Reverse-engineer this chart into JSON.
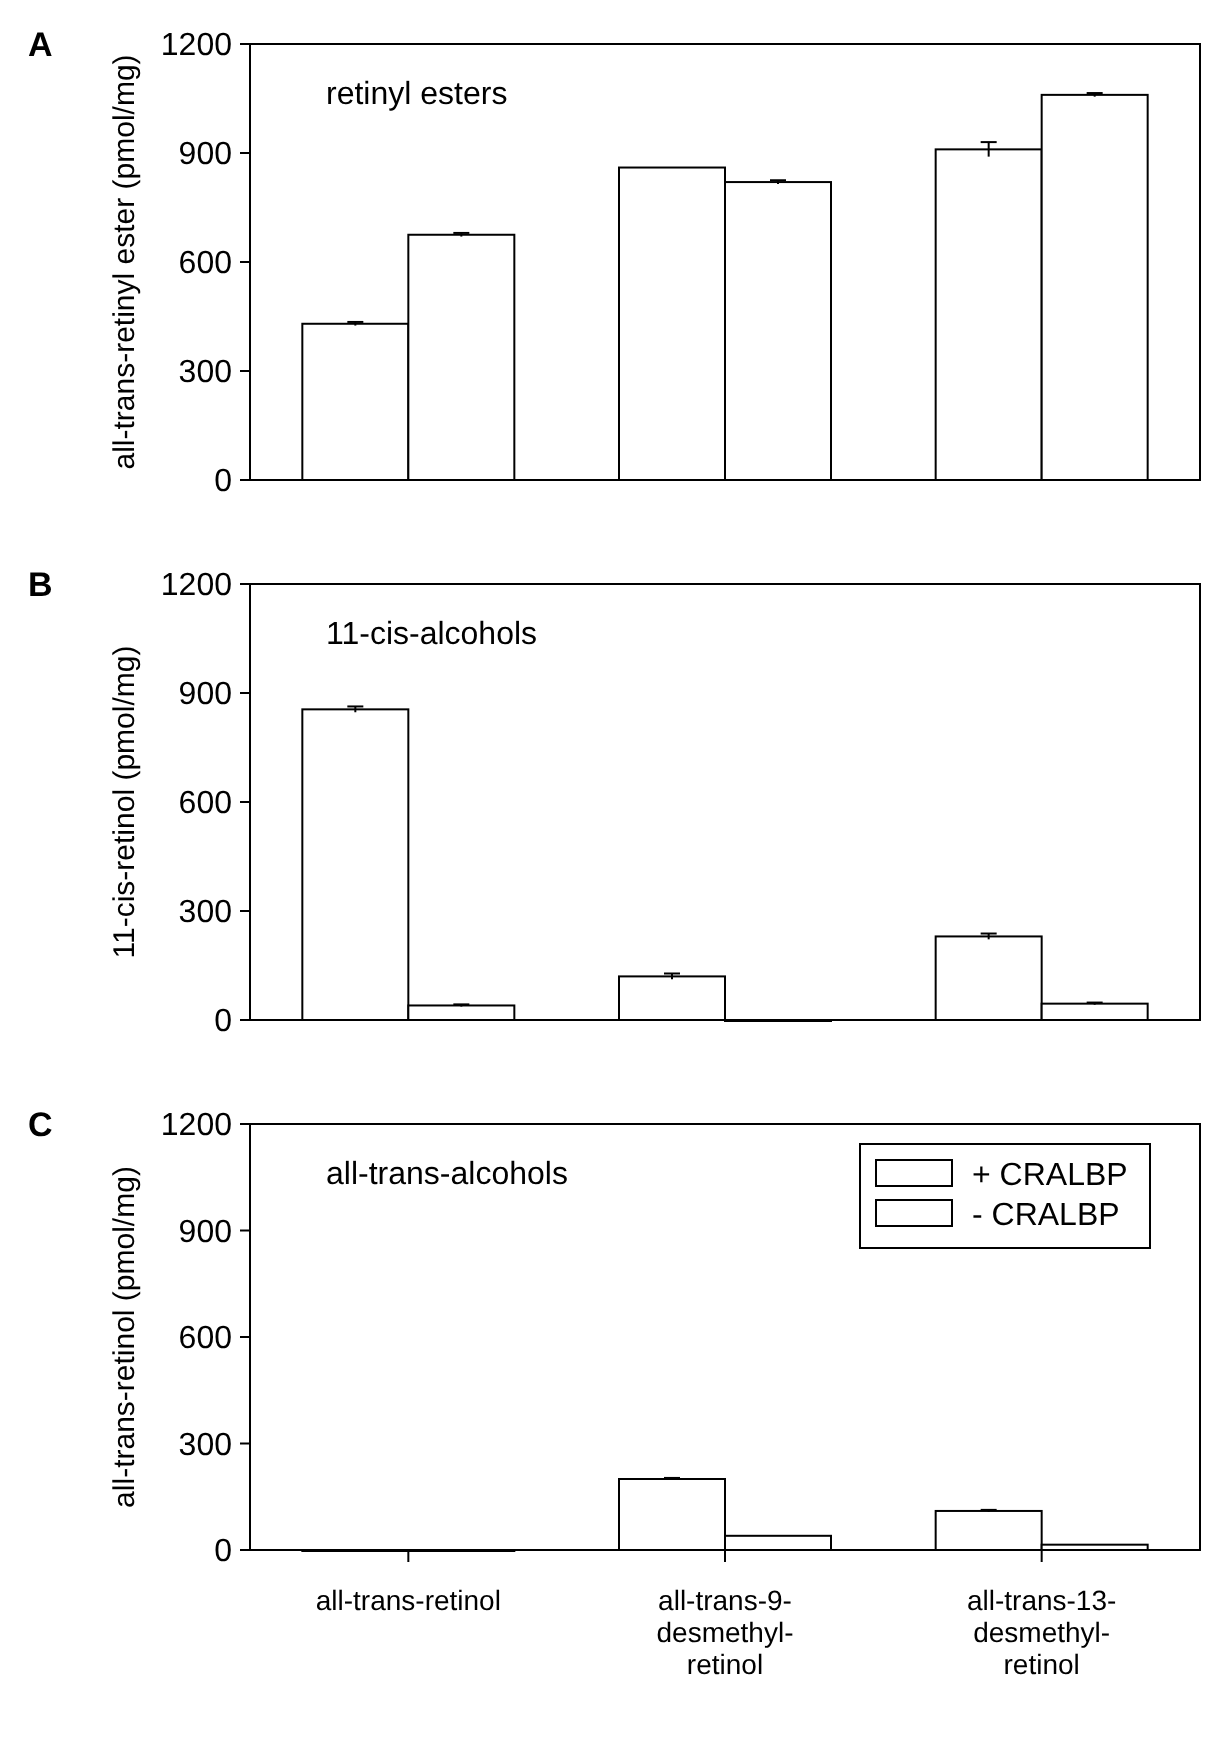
{
  "chart_data": [
    {
      "type": "bar",
      "title": "retinyl esters",
      "ylabel": "all-trans-retinyl ester (pmol/mg)",
      "annotations": [
        "A"
      ],
      "series": [
        {
          "color": "#ffffff",
          "values": [
            430,
            860,
            910
          ],
          "errors": [
            5,
            null,
            20
          ]
        },
        {
          "color": "#ffffff",
          "values": [
            675,
            820,
            1060
          ],
          "errors": [
            5,
            5,
            5
          ]
        }
      ],
      "ylim": [
        0,
        1200
      ],
      "yticks": [
        0,
        300,
        600,
        900,
        1200
      ],
      "tick_labels": "y",
      "legend": false
    },
    {
      "type": "bar",
      "title": "11-cis-alcohols",
      "ylabel": "11-cis-retinol (pmol/mg)",
      "annotations": [
        "B"
      ],
      "series": [
        {
          "color": "#ffffff",
          "values": [
            855,
            120,
            230
          ],
          "errors": [
            8,
            8,
            8
          ]
        },
        {
          "color": "#ffffff",
          "values": [
            40,
            0,
            45
          ],
          "errors": [
            3,
            null,
            3
          ]
        }
      ],
      "ylim": [
        0,
        1200
      ],
      "yticks": [
        0,
        300,
        600,
        900,
        1200
      ],
      "tick_labels": "y",
      "legend": false
    },
    {
      "type": "bar",
      "title": "all-trans-alcohols",
      "ylabel": "all-trans-retinol (pmol/mg)",
      "annotations": [
        "C"
      ],
      "categories": [
        "all-trans-retinol",
        "all-trans-9-desmethyl-retinol",
        "all-trans-13-desmethyl-retinol"
      ],
      "series": [
        {
          "name": "+ CRALBP",
          "color": "#ffffff",
          "values": [
            0,
            200,
            110
          ],
          "errors": [
            null,
            3,
            3
          ]
        },
        {
          "name": "- CRALBP",
          "color": "#ffffff",
          "values": [
            0,
            40,
            15
          ],
          "errors": [
            null,
            null,
            null
          ]
        }
      ],
      "ylim": [
        0,
        1200
      ],
      "yticks": [
        0,
        300,
        600,
        900,
        1200
      ],
      "legend": "top right"
    }
  ]
}
